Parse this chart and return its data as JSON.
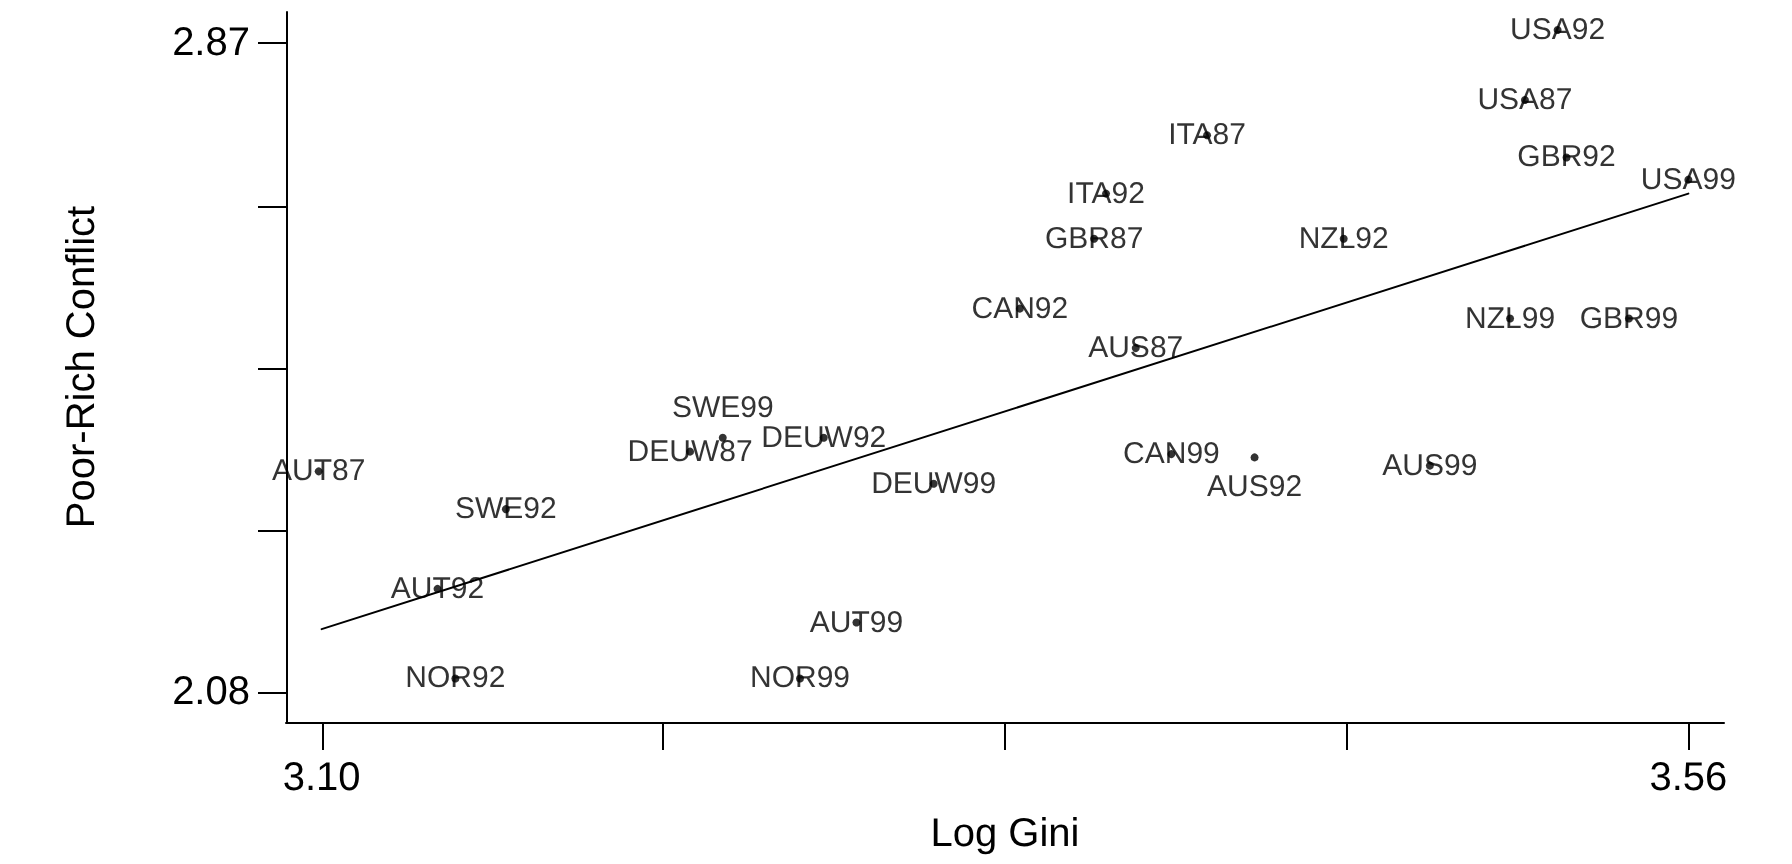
{
  "chart_data": {
    "type": "scatter",
    "xlabel": "Log Gini",
    "ylabel": "Poor-Rich Conflict",
    "xlim": [
      3.088,
      3.572
    ],
    "xticks": [
      {
        "value": 3.1,
        "label": "3.10"
      },
      {
        "value": 3.215,
        "label": null
      },
      {
        "value": 3.33,
        "label": null
      },
      {
        "value": 3.445,
        "label": null
      },
      3.56
    ],
    "ylim": [
      2.044,
      2.908
    ],
    "yticks": [
      2.08,
      {
        "value": 2.2775,
        "label": null
      },
      {
        "value": 2.475,
        "label": null
      },
      {
        "value": 2.6725,
        "label": null
      },
      2.87
    ],
    "grid": false,
    "series": [
      {
        "color": "#000000",
        "marker": "circle",
        "x": [
          3.099,
          3.162,
          3.139,
          3.145,
          3.224,
          3.235,
          3.269,
          3.306,
          3.28,
          3.261,
          3.398,
          3.364,
          3.36,
          3.335,
          3.374,
          3.386,
          3.414,
          3.444,
          3.473,
          3.5,
          3.54,
          3.516,
          3.505,
          3.519,
          3.56
        ],
        "values": [
          2.349,
          2.303,
          2.206,
          2.097,
          2.373,
          2.39,
          2.39,
          2.334,
          2.165,
          2.097,
          2.758,
          2.687,
          2.632,
          2.547,
          2.499,
          2.37,
          2.366,
          2.632,
          2.356,
          2.535,
          2.535,
          2.886,
          2.801,
          2.731,
          2.704
        ],
        "value_labels": [
          "AUT87",
          "SWE92",
          "AUT92",
          "NOR92",
          "DEUW87",
          "SWE99",
          "DEUW92",
          "DEUW99",
          "AUT99",
          "NOR99",
          "ITA87",
          "ITA92",
          "GBR87",
          "CAN92",
          "AUS87",
          "CAN99",
          "AUS92",
          "NZL92",
          "AUS99",
          "NZL99",
          "GBR99",
          "USA92",
          "USA87",
          "GBR92",
          "USA99"
        ]
      },
      {
        "type": "line",
        "color": "#000000",
        "line_style": "solid",
        "x": [
          3.1,
          3.56
        ],
        "values": [
          2.157,
          2.687
        ]
      }
    ]
  }
}
